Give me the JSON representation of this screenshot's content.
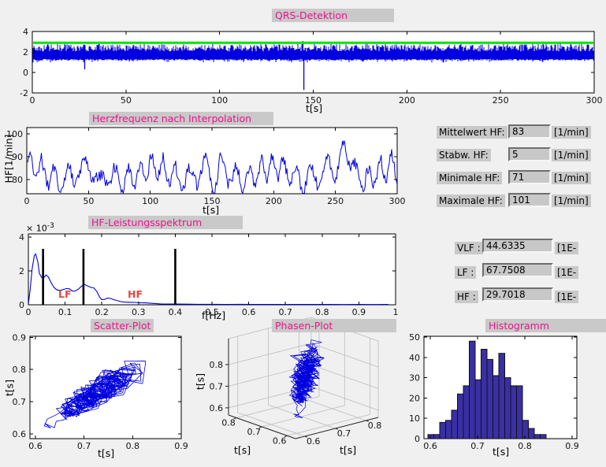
{
  "colors": {
    "figure_bg": "#f0f0f0",
    "title_fg": "#ed138d",
    "panel_bg": "#c9c9c9",
    "signal_blue": "#0000dd",
    "ecg_blue": "#0000e0",
    "threshold_green": "#00e400",
    "hist_bar": "#3a2fa5",
    "band_label_red": "#e8473a"
  },
  "plots": {
    "qrs": {
      "title": "QRS-Detektion",
      "xlabel": "t[s]",
      "xtick_labels": [
        "0",
        "50",
        "100",
        "150",
        "200",
        "250",
        "300"
      ],
      "ytick_labels": [
        "-2",
        "0",
        "2",
        "4"
      ]
    },
    "hf": {
      "title": "Herzfrequenz nach Interpolation",
      "xlabel": "t[s]",
      "ylabel": "HF[1/min]",
      "xtick_labels": [
        "0",
        "50",
        "100",
        "150",
        "200",
        "250",
        "300"
      ],
      "ytick_labels": [
        "80",
        "90",
        "100"
      ]
    },
    "spectrum": {
      "title": "HF-Leistungsspektrum",
      "xlabel": "f[Hz]",
      "y_multiplier_base": "× 10",
      "y_multiplier_exp": "-3",
      "xtick_labels": [
        "0",
        "0.1",
        "0.2",
        "0.3",
        "0.4",
        "0.5",
        "0.6",
        "0.7",
        "0.8",
        "0.9",
        "1"
      ],
      "ytick_labels": [
        "0",
        "2",
        "4"
      ],
      "band_labels": [
        {
          "text": "LF"
        },
        {
          "text": "HF"
        }
      ]
    },
    "scatter": {
      "title": "Scatter-Plot",
      "xlabel": "t[s]",
      "ylabel": "t[s]",
      "xtick_labels": [
        "0.6",
        "0.7",
        "0.8",
        "0.9"
      ],
      "ytick_labels": [
        "0.6",
        "0.7",
        "0.8",
        "0.9"
      ]
    },
    "phase": {
      "title": "Phasen-Plot",
      "xlabel_left": "t[s]",
      "xlabel_right": "t[s]",
      "zlabel": "t[s]",
      "left_tick_labels": [
        "0.6",
        "0.7",
        "0.8"
      ],
      "right_tick_labels": [
        "0.6",
        "0.7",
        "0.8"
      ],
      "ztick_labels": [
        "0.6",
        "0.7",
        "0.8"
      ]
    },
    "hist": {
      "title": "Histogramm",
      "xlabel": "t[s]",
      "xtick_labels": [
        "0.6",
        "0.7",
        "0.8",
        "0.9"
      ],
      "ytick_labels": [
        "0",
        "10",
        "20",
        "30",
        "40",
        "50"
      ]
    }
  },
  "stats": {
    "rows": [
      {
        "label": "Mittelwert HF:",
        "value": "83",
        "unit": "[1/min]"
      },
      {
        "label": "Stabw. HF:",
        "value": "5",
        "unit": "[1/min]"
      },
      {
        "label": "Minimale HF:",
        "value": "71",
        "unit": "[1/min]"
      },
      {
        "label": "Maximale HF:",
        "value": "101",
        "unit": "[1/min]"
      }
    ]
  },
  "freq": {
    "rows": [
      {
        "label": "VLF :",
        "value": "44.6335",
        "unit": "[1E-"
      },
      {
        "label": "LF :",
        "value": "67.7508",
        "unit": "[1E-"
      },
      {
        "label": "HF :",
        "value": "29.7018",
        "unit": "[1E-"
      }
    ]
  },
  "chart_data": [
    {
      "id": "qrs",
      "type": "line",
      "title": "QRS-Detektion",
      "xlabel": "t[s]",
      "xlim": [
        0,
        300
      ],
      "ylim": [
        -2,
        4
      ],
      "xticks": [
        0,
        50,
        100,
        150,
        200,
        250,
        300
      ],
      "yticks": [
        -2,
        0,
        2,
        4
      ],
      "threshold": 2.9,
      "signal_band": [
        1.15,
        2.8
      ],
      "anomalies": [
        {
          "t": 28,
          "min": 0.3
        },
        {
          "t": 145,
          "min": -1.7,
          "max": 3.07
        }
      ]
    },
    {
      "id": "hf",
      "type": "line",
      "title": "Herzfrequenz nach Interpolation",
      "xlabel": "t[s]",
      "ylabel": "HF[1/min]",
      "xlim": [
        0,
        300
      ],
      "yticks": [
        80,
        90,
        100
      ],
      "mean": 83,
      "sd": 5,
      "min": 71,
      "max": 101,
      "max_at_s": 257,
      "min_at_s": 58
    },
    {
      "id": "spectrum",
      "type": "line",
      "title": "HF-Leistungsspektrum",
      "xlabel": "f[Hz]",
      "xlim": [
        0,
        1
      ],
      "yticks_1e3": [
        0,
        2,
        4
      ],
      "band_lines_hz": [
        0.04,
        0.15,
        0.4
      ],
      "band_line_top_1e3": 3.3,
      "vlf": 44.6335,
      "lf": 67.7508,
      "hf": 29.7018,
      "points_hz_1e3": [
        [
          0,
          0.05
        ],
        [
          0.005,
          0.9
        ],
        [
          0.01,
          2.1
        ],
        [
          0.016,
          2.9
        ],
        [
          0.02,
          3.0
        ],
        [
          0.026,
          2.5
        ],
        [
          0.03,
          1.85
        ],
        [
          0.036,
          1.62
        ],
        [
          0.042,
          1.6
        ],
        [
          0.048,
          1.76
        ],
        [
          0.054,
          1.65
        ],
        [
          0.062,
          1.3
        ],
        [
          0.07,
          1.02
        ],
        [
          0.078,
          0.88
        ],
        [
          0.086,
          0.84
        ],
        [
          0.095,
          0.9
        ],
        [
          0.104,
          0.96
        ],
        [
          0.112,
          0.94
        ],
        [
          0.12,
          0.8
        ],
        [
          0.128,
          0.82
        ],
        [
          0.136,
          0.92
        ],
        [
          0.145,
          1.1
        ],
        [
          0.152,
          1.22
        ],
        [
          0.16,
          1.12
        ],
        [
          0.17,
          1.03
        ],
        [
          0.178,
          1.0
        ],
        [
          0.186,
          0.8
        ],
        [
          0.194,
          0.45
        ],
        [
          0.2,
          0.3
        ],
        [
          0.208,
          0.32
        ],
        [
          0.216,
          0.4
        ],
        [
          0.224,
          0.37
        ],
        [
          0.232,
          0.3
        ],
        [
          0.24,
          0.26
        ],
        [
          0.25,
          0.19
        ],
        [
          0.26,
          0.16
        ],
        [
          0.275,
          0.15
        ],
        [
          0.29,
          0.14
        ],
        [
          0.305,
          0.12
        ],
        [
          0.32,
          0.11
        ],
        [
          0.34,
          0.08
        ],
        [
          0.36,
          0.05
        ],
        [
          0.38,
          0.045
        ],
        [
          0.4,
          0.04
        ],
        [
          0.43,
          0.035
        ],
        [
          0.46,
          0.03
        ],
        [
          0.5,
          0.03
        ],
        [
          0.54,
          0.025
        ],
        [
          0.58,
          0.03
        ],
        [
          0.62,
          0.02
        ],
        [
          0.66,
          0.025
        ],
        [
          0.7,
          0.02
        ],
        [
          0.74,
          0.025
        ],
        [
          0.78,
          0.02
        ],
        [
          0.82,
          0.02
        ],
        [
          0.86,
          0.015
        ],
        [
          0.9,
          0.02
        ],
        [
          0.94,
          0.015
        ],
        [
          0.98,
          0.02
        ]
      ]
    },
    {
      "id": "scatter",
      "type": "scatter",
      "title": "Scatter-Plot",
      "xlabel": "t[s]",
      "ylabel": "t[s]",
      "xticks": [
        0.6,
        0.7,
        0.8,
        0.9
      ],
      "yticks": [
        0.6,
        0.7,
        0.8,
        0.9
      ],
      "data_range": [
        0.59,
        0.85
      ]
    },
    {
      "id": "phase",
      "type": "line3d",
      "title": "Phasen-Plot",
      "axis_ticks": [
        0.6,
        0.7,
        0.8
      ],
      "data_range": [
        0.59,
        0.85
      ]
    },
    {
      "id": "histogram",
      "type": "bar",
      "title": "Histogramm",
      "xlabel": "t[s]",
      "bin_start": 0.595,
      "bin_width": 0.0125,
      "values": [
        2,
        2,
        8,
        9,
        14,
        22,
        26,
        48,
        29,
        44,
        39,
        31,
        42,
        30,
        26,
        26,
        9,
        5,
        2,
        2
      ],
      "xticks": [
        0.6,
        0.7,
        0.8,
        0.9
      ],
      "yticks": [
        0,
        10,
        20,
        30,
        40,
        50
      ],
      "ylim": [
        0,
        50
      ]
    }
  ]
}
